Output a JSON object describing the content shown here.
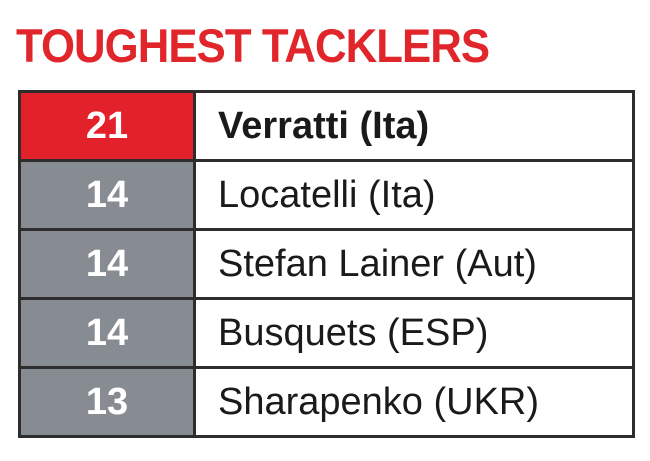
{
  "title": "TOUGHEST TACKLERS",
  "table": {
    "rows": [
      [
        21,
        "Verratti (Ita)"
      ],
      [
        14,
        "Locatelli (Ita)"
      ],
      [
        14,
        "Stefan Lainer (Aut)"
      ],
      [
        14,
        "Busquets (ESP)"
      ],
      [
        13,
        "Sharapenko (UKR)"
      ]
    ]
  }
}
